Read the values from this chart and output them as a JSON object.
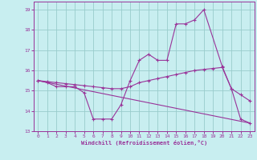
{
  "xlabel": "Windchill (Refroidissement éolien,°C)",
  "background_color": "#c8eef0",
  "grid_color": "#99cccc",
  "line_color": "#993399",
  "spine_color": "#993399",
  "xlim": [
    -0.5,
    23.5
  ],
  "ylim": [
    13,
    19.4
  ],
  "yticks": [
    13,
    14,
    15,
    16,
    17,
    18,
    19
  ],
  "xticks": [
    0,
    1,
    2,
    3,
    4,
    5,
    6,
    7,
    8,
    9,
    10,
    11,
    12,
    13,
    14,
    15,
    16,
    17,
    18,
    19,
    20,
    21,
    22,
    23
  ],
  "series1_x": [
    0,
    1,
    2,
    3,
    4,
    5,
    6,
    7,
    8,
    9,
    10,
    11,
    12,
    13,
    14,
    15,
    16,
    17,
    18,
    20,
    21,
    22,
    23
  ],
  "series1_y": [
    15.5,
    15.4,
    15.2,
    15.2,
    15.2,
    14.9,
    13.6,
    13.6,
    13.6,
    14.3,
    15.5,
    16.5,
    16.8,
    16.5,
    16.5,
    18.3,
    18.3,
    18.5,
    19.0,
    16.2,
    15.1,
    13.6,
    13.4
  ],
  "series2_x": [
    0,
    1,
    2,
    3,
    4,
    5,
    6,
    7,
    8,
    9,
    10,
    11,
    12,
    13,
    14,
    15,
    16,
    17,
    18,
    19,
    20,
    21,
    22,
    23
  ],
  "series2_y": [
    15.5,
    15.45,
    15.4,
    15.35,
    15.3,
    15.25,
    15.2,
    15.15,
    15.1,
    15.1,
    15.2,
    15.4,
    15.5,
    15.6,
    15.7,
    15.8,
    15.9,
    16.0,
    16.05,
    16.1,
    16.15,
    15.1,
    14.8,
    14.5
  ],
  "series3_x": [
    0,
    23
  ],
  "series3_y": [
    15.5,
    13.4
  ]
}
